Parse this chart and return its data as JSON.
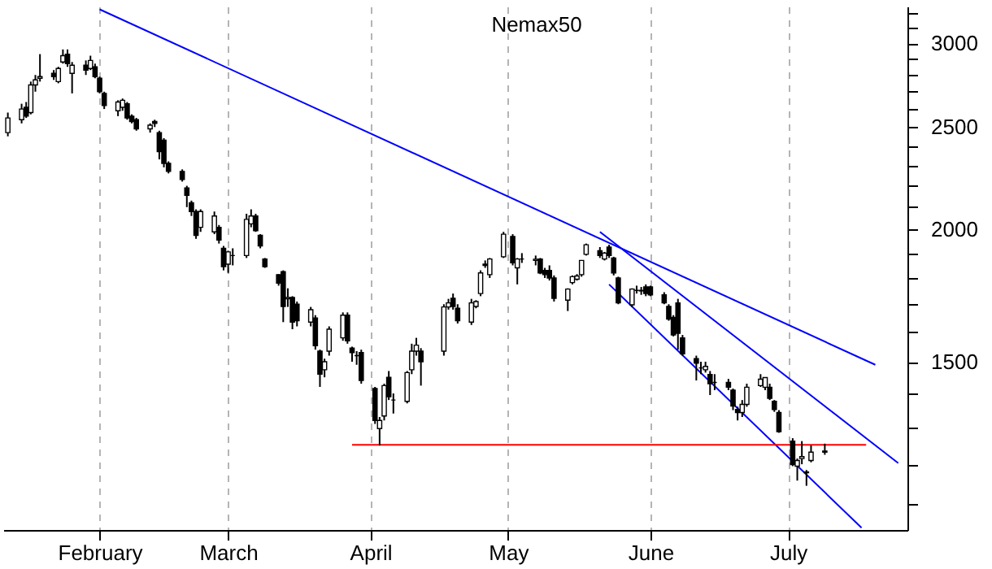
{
  "chart_data": {
    "type": "candlestick",
    "title": "Nemax50",
    "x": [
      "--01-12",
      "--01-15",
      "--01-16",
      "--01-17",
      "--01-18",
      "--01-19",
      "--01-22",
      "--01-23",
      "--01-24",
      "--01-25",
      "--01-26",
      "--01-29",
      "--01-30",
      "--01-31",
      "--02-01",
      "--02-02",
      "--02-05",
      "--02-06",
      "--02-07",
      "--02-08",
      "--02-09",
      "--02-12",
      "--02-13",
      "--02-14",
      "--02-15",
      "--02-16",
      "--02-19",
      "--02-20",
      "--02-21",
      "--02-22",
      "--02-23",
      "--02-26",
      "--02-27",
      "--02-28",
      "--03-01",
      "--03-02",
      "--03-05",
      "--03-06",
      "--03-07",
      "--03-08",
      "--03-09",
      "--03-12",
      "--03-13",
      "--03-14",
      "--03-15",
      "--03-16",
      "--03-19",
      "--03-20",
      "--03-21",
      "--03-22",
      "--03-23",
      "--03-26",
      "--03-27",
      "--03-28",
      "--03-29",
      "--03-30",
      "--04-02",
      "--04-03",
      "--04-04",
      "--04-05",
      "--04-06",
      "--04-09",
      "--04-10",
      "--04-11",
      "--04-12",
      "--04-17",
      "--04-18",
      "--04-19",
      "--04-20",
      "--04-23",
      "--04-24",
      "--04-25",
      "--04-26",
      "--04-27",
      "--04-30",
      "--05-02",
      "--05-03",
      "--05-04",
      "--05-07",
      "--05-08",
      "--05-09",
      "--05-10",
      "--05-11",
      "--05-14",
      "--05-15",
      "--05-16",
      "--05-17",
      "--05-18",
      "--05-21",
      "--05-22",
      "--05-23",
      "--05-24",
      "--05-25",
      "--05-28",
      "--05-29",
      "--05-30",
      "--05-31",
      "--06-01",
      "--06-04",
      "--06-05",
      "--06-06",
      "--06-07",
      "--06-08",
      "--06-11",
      "--06-12",
      "--06-13",
      "--06-14",
      "--06-15",
      "--06-18",
      "--06-19",
      "--06-20",
      "--06-21",
      "--06-22",
      "--06-25",
      "--06-26",
      "--06-27",
      "--06-28",
      "--06-29",
      "--07-02",
      "--07-03",
      "--07-04",
      "--07-05",
      "--07-06",
      "--07-09"
    ],
    "ohlc": [
      [
        2470,
        2580,
        2450,
        2550
      ],
      [
        2540,
        2630,
        2520,
        2600
      ],
      [
        2610,
        2640,
        2550,
        2560
      ],
      [
        2580,
        2760,
        2570,
        2740
      ],
      [
        2740,
        2800,
        2700,
        2770
      ],
      [
        2780,
        2930,
        2760,
        2790
      ],
      [
        2810,
        2830,
        2770,
        2790
      ],
      [
        2760,
        2850,
        2750,
        2840
      ],
      [
        2880,
        2960,
        2870,
        2920
      ],
      [
        2930,
        2960,
        2850,
        2870
      ],
      [
        2810,
        2880,
        2690,
        2860
      ],
      [
        2860,
        2890,
        2800,
        2830
      ],
      [
        2840,
        2920,
        2830,
        2890
      ],
      [
        2850,
        2870,
        2780,
        2790
      ],
      [
        2780,
        2790,
        2690,
        2700
      ],
      [
        2690,
        2700,
        2600,
        2620
      ],
      [
        2590,
        2650,
        2560,
        2640
      ],
      [
        2610,
        2660,
        2590,
        2650
      ],
      [
        2630,
        2640,
        2540,
        2550
      ],
      [
        2560,
        2570,
        2520,
        2530
      ],
      [
        2540,
        2550,
        2480,
        2490
      ],
      [
        2490,
        2520,
        2470,
        2510
      ],
      [
        2530,
        2540,
        2500,
        2520
      ],
      [
        2470,
        2480,
        2330,
        2370
      ],
      [
        2430,
        2440,
        2290,
        2310
      ],
      [
        2310,
        2320,
        2260,
        2270
      ],
      [
        2270,
        2280,
        2220,
        2230
      ],
      [
        2190,
        2200,
        2100,
        2155
      ],
      [
        2120,
        2130,
        2060,
        2080
      ],
      [
        2080,
        2090,
        1960,
        1975
      ],
      [
        2010,
        2090,
        1990,
        2080
      ],
      [
        1990,
        2080,
        1980,
        2060
      ],
      [
        2010,
        2020,
        1940,
        1955
      ],
      [
        1920,
        1930,
        1830,
        1845
      ],
      [
        1855,
        1910,
        1820,
        1905
      ],
      [
        1890,
        1920,
        1850,
        1890
      ],
      [
        1890,
        2070,
        1880,
        2045
      ],
      [
        2025,
        2090,
        2010,
        2060
      ],
      [
        2060,
        2070,
        1990,
        1995
      ],
      [
        1975,
        1980,
        1920,
        1930
      ],
      [
        1876,
        1880,
        1840,
        1845
      ],
      [
        1813,
        1815,
        1770,
        1780
      ],
      [
        1825,
        1830,
        1635,
        1692
      ],
      [
        1720,
        1760,
        1690,
        1725
      ],
      [
        1725,
        1730,
        1610,
        1635
      ],
      [
        1700,
        1710,
        1620,
        1640
      ],
      [
        1635,
        1690,
        1620,
        1680
      ],
      [
        1650,
        1660,
        1540,
        1553
      ],
      [
        1535,
        1540,
        1420,
        1460
      ],
      [
        1474,
        1510,
        1450,
        1500
      ],
      [
        1535,
        1620,
        1520,
        1610
      ],
      [
        1580,
        1670,
        1570,
        1660
      ],
      [
        1660,
        1670,
        1560,
        1570
      ],
      [
        1545,
        1550,
        1500,
        1530
      ],
      [
        1520,
        1535,
        1490,
        1520
      ],
      [
        1530,
        1540,
        1430,
        1440
      ],
      [
        1415,
        1420,
        1310,
        1320
      ],
      [
        1297,
        1330,
        1250,
        1320
      ],
      [
        1333,
        1430,
        1320,
        1424
      ],
      [
        1450,
        1470,
        1380,
        1390
      ],
      [
        1380,
        1400,
        1340,
        1380
      ],
      [
        1376,
        1470,
        1370,
        1465
      ],
      [
        1474,
        1560,
        1460,
        1535
      ],
      [
        1535,
        1580,
        1520,
        1555
      ],
      [
        1535,
        1545,
        1424,
        1500
      ],
      [
        1535,
        1700,
        1520,
        1690
      ],
      [
        1690,
        1720,
        1680,
        1705
      ],
      [
        1722,
        1740,
        1680,
        1692
      ],
      [
        1685,
        1700,
        1630,
        1640
      ],
      [
        1635,
        1720,
        1625,
        1705
      ],
      [
        1692,
        1715,
        1685,
        1710
      ],
      [
        1740,
        1830,
        1730,
        1820
      ],
      [
        1850,
        1870,
        1840,
        1855
      ],
      [
        1813,
        1880,
        1800,
        1876
      ],
      [
        1885,
        1990,
        1880,
        1980
      ],
      [
        1970,
        1980,
        1850,
        1860
      ],
      [
        1840,
        1880,
        1775,
        1876
      ],
      [
        1876,
        1900,
        1860,
        1876
      ],
      [
        1870,
        1890,
        1850,
        1875
      ],
      [
        1876,
        1880,
        1815,
        1820
      ],
      [
        1830,
        1840,
        1800,
        1813
      ],
      [
        1830,
        1850,
        1790,
        1800
      ],
      [
        1800,
        1810,
        1710,
        1722
      ],
      [
        1715,
        1760,
        1675,
        1757
      ],
      [
        1782,
        1810,
        1775,
        1805
      ],
      [
        1795,
        1815,
        1790,
        1808
      ],
      [
        1813,
        1870,
        1805,
        1870
      ],
      [
        1895,
        1940,
        1890,
        1935
      ],
      [
        1910,
        1925,
        1880,
        1890
      ],
      [
        1876,
        1905,
        1870,
        1900
      ],
      [
        1925,
        1935,
        1880,
        1890
      ],
      [
        1880,
        1885,
        1810,
        1820
      ],
      [
        1800,
        1805,
        1700,
        1705
      ],
      [
        1698,
        1760,
        1690,
        1757
      ],
      [
        1752,
        1770,
        1740,
        1752
      ],
      [
        1750,
        1765,
        1735,
        1752
      ],
      [
        1765,
        1775,
        1730,
        1740
      ],
      [
        1765,
        1770,
        1730,
        1735
      ],
      [
        1735,
        1745,
        1700,
        1705
      ],
      [
        1692,
        1700,
        1640,
        1646
      ],
      [
        1652,
        1660,
        1585,
        1590
      ],
      [
        1705,
        1720,
        1540,
        1596
      ],
      [
        1580,
        1590,
        1520,
        1526
      ],
      [
        1510,
        1520,
        1440,
        1495
      ],
      [
        1480,
        1500,
        1460,
        1480
      ],
      [
        1474,
        1500,
        1465,
        1485
      ],
      [
        1459,
        1470,
        1395,
        1430
      ],
      [
        1434,
        1460,
        1410,
        1434
      ],
      [
        1434,
        1445,
        1410,
        1419
      ],
      [
        1410,
        1415,
        1350,
        1362
      ],
      [
        1352,
        1360,
        1320,
        1343
      ],
      [
        1343,
        1380,
        1330,
        1367
      ],
      [
        1367,
        1430,
        1360,
        1419
      ],
      [
        1424,
        1460,
        1420,
        1444
      ],
      [
        1419,
        1450,
        1410,
        1449
      ],
      [
        1419,
        1430,
        1380,
        1385
      ],
      [
        1376,
        1380,
        1345,
        1352
      ],
      [
        1343,
        1350,
        1285,
        1288
      ],
      [
        1262,
        1270,
        1195,
        1199
      ],
      [
        1195,
        1215,
        1158,
        1210
      ],
      [
        1215,
        1262,
        1200,
        1220
      ],
      [
        1180,
        1185,
        1145,
        1178
      ],
      [
        1210,
        1250,
        1205,
        1232
      ],
      [
        1232,
        1255,
        1225,
        1235
      ]
    ],
    "series": [
      {
        "type": "line",
        "color": "#0000ff",
        "x": [
          "--02-01",
          "--07-20"
        ],
        "values": [
          3230,
          1490
        ]
      },
      {
        "type": "line",
        "color": "#0000ff",
        "x": [
          "--05-21",
          "--07-25"
        ],
        "values": [
          1990,
          1203
        ]
      },
      {
        "type": "line",
        "color": "#0000ff",
        "x": [
          "--05-23",
          "--07-17"
        ],
        "values": [
          1775,
          1045
        ]
      },
      {
        "type": "line",
        "color": "#ff0000",
        "x": [
          "--03-28",
          "--07-18"
        ],
        "values": [
          1252,
          1252
        ]
      }
    ],
    "xlim": [
      "--01-11",
      "--07-27"
    ],
    "xticks": [
      {
        "value": "--02-01",
        "label": "February"
      },
      {
        "value": "--03-01",
        "label": "March"
      },
      {
        "value": "--04-01",
        "label": "April"
      },
      {
        "value": "--05-01",
        "label": "May"
      },
      {
        "value": "--06-01",
        "label": "June"
      },
      {
        "value": "--07-01",
        "label": "July"
      }
    ],
    "ylim": [
      1040,
      3250
    ],
    "yticks": [
      {
        "value": 1100,
        "label": null
      },
      {
        "value": 1200,
        "label": null
      },
      {
        "value": 1300,
        "label": null
      },
      {
        "value": 1400,
        "label": null
      },
      1500,
      {
        "value": 1600,
        "label": null
      },
      {
        "value": 1700,
        "label": null
      },
      {
        "value": 1800,
        "label": null
      },
      {
        "value": 1900,
        "label": null
      },
      2000,
      {
        "value": 2100,
        "label": null
      },
      {
        "value": 2200,
        "label": null
      },
      {
        "value": 2300,
        "label": null
      },
      {
        "value": 2400,
        "label": null
      },
      2500,
      {
        "value": 2600,
        "label": null
      },
      {
        "value": 2700,
        "label": null
      },
      {
        "value": 2800,
        "label": null
      },
      {
        "value": 2900,
        "label": null
      },
      3000,
      {
        "value": 3100,
        "label": null
      },
      {
        "value": 3200,
        "label": null
      }
    ],
    "log": true,
    "grid": "x"
  }
}
